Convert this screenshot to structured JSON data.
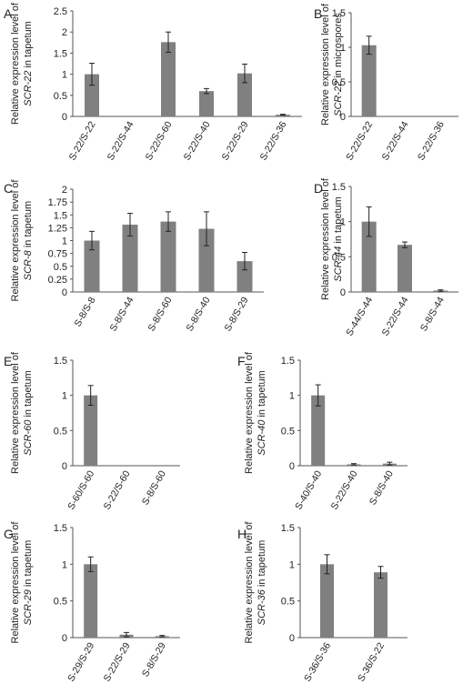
{
  "colors": {
    "bar": "#808080",
    "axis": "#555555",
    "text": "#222222",
    "error_bar": "#222222"
  },
  "chart_data": [
    {
      "panel_letter": "A",
      "type": "bar",
      "ylabel_line1": "Relative expression level of",
      "ylabel_gene": "SCR-22",
      "ylabel_tissue": " in tapetum",
      "ylim": [
        0,
        2.5
      ],
      "yticks": [
        "0",
        "0.5",
        "1",
        "1.5",
        "2",
        "2.5"
      ],
      "categories": [
        "S-22/S-22",
        "S-22/S-44",
        "S-22/S-60",
        "S-22/S-40",
        "S-22/S-29",
        "S-22/S-36"
      ],
      "values": [
        1.0,
        0.0,
        1.76,
        0.6,
        1.02,
        0.04
      ],
      "errors": [
        0.26,
        0.0,
        0.24,
        0.06,
        0.22,
        0.01
      ]
    },
    {
      "panel_letter": "B",
      "type": "bar",
      "ylabel_line1": "Relative expression level of",
      "ylabel_gene": "SCR-22",
      "ylabel_tissue": " in microspores",
      "ylim": [
        0,
        1.5
      ],
      "yticks": [
        "0",
        "0.5",
        "1",
        "1.5"
      ],
      "categories": [
        "S-22/S-22",
        "S-22/S-44",
        "S-22/S-36"
      ],
      "values": [
        1.03,
        0.0,
        0.0
      ],
      "errors": [
        0.13,
        0.0,
        0.0
      ]
    },
    {
      "panel_letter": "C",
      "type": "bar",
      "ylabel_line1": "Relative expression level of",
      "ylabel_gene": "SCR-8",
      "ylabel_tissue": " in tapetum",
      "ylim": [
        0,
        2
      ],
      "yticks": [
        "0",
        "0.25",
        "0.5",
        "0.75",
        "1",
        "1.25",
        "1.5",
        "1.75",
        "2"
      ],
      "categories": [
        "S-8/S-8",
        "S-8/S-44",
        "S-8/S-60",
        "S-8/S-40",
        "S-8/S-29"
      ],
      "values": [
        1.0,
        1.31,
        1.37,
        1.23,
        0.6
      ],
      "errors": [
        0.18,
        0.22,
        0.19,
        0.33,
        0.17
      ]
    },
    {
      "panel_letter": "D",
      "type": "bar",
      "ylabel_line1": "Relative expression level of",
      "ylabel_gene": "SCR-44",
      "ylabel_tissue": " in tapetum",
      "ylim": [
        0,
        1.5
      ],
      "yticks": [
        "0",
        "0.5",
        "1",
        "1.5"
      ],
      "categories": [
        "S-44/S-44",
        "S-22/S-44",
        "S-8/S-44"
      ],
      "values": [
        1.0,
        0.67,
        0.02
      ],
      "errors": [
        0.21,
        0.04,
        0.01
      ]
    },
    {
      "panel_letter": "E",
      "type": "bar",
      "ylabel_line1": "Relative expression level of",
      "ylabel_gene": "SCR-60",
      "ylabel_tissue": "  in tapetum",
      "ylim": [
        0,
        1.5
      ],
      "yticks": [
        "0",
        "0.5",
        "1",
        "1.5"
      ],
      "categories": [
        "S-60/S-60",
        "S-22/S-60",
        "S-8/S-60"
      ],
      "values": [
        1.0,
        0.0,
        0.0
      ],
      "errors": [
        0.14,
        0.0,
        0.0
      ]
    },
    {
      "panel_letter": "F",
      "type": "bar",
      "ylabel_line1": "Relative expression level of",
      "ylabel_gene": "SCR-40",
      "ylabel_tissue": " in tapetum",
      "ylim": [
        0,
        1.5
      ],
      "yticks": [
        "0",
        "0.5",
        "1",
        "1.5"
      ],
      "categories": [
        "S-40/S-40",
        "S-22/S-40",
        "S-8/S-40"
      ],
      "values": [
        1.0,
        0.02,
        0.03
      ],
      "errors": [
        0.15,
        0.01,
        0.02
      ]
    },
    {
      "panel_letter": "G",
      "type": "bar",
      "ylabel_line1": "Relative expression level of",
      "ylabel_gene": "SCR-29",
      "ylabel_tissue": " in tapetum",
      "ylim": [
        0,
        1.5
      ],
      "yticks": [
        "0",
        "0.5",
        "1",
        "1.5"
      ],
      "categories": [
        "S-29/S-29",
        "S-22/S-29",
        "S-8/S-29"
      ],
      "values": [
        1.0,
        0.04,
        0.02
      ],
      "errors": [
        0.1,
        0.03,
        0.01
      ]
    },
    {
      "panel_letter": "H",
      "type": "bar",
      "ylabel_line1": "Relative expression level of",
      "ylabel_gene": "SCR-36",
      "ylabel_tissue": " in tapetum",
      "ylim": [
        0,
        1.5
      ],
      "yticks": [
        "0",
        "0.5",
        "1",
        "1.5"
      ],
      "categories": [
        "S-36/S-36",
        "S-36/S-22"
      ],
      "values": [
        1.0,
        0.89
      ],
      "errors": [
        0.13,
        0.08
      ]
    }
  ]
}
